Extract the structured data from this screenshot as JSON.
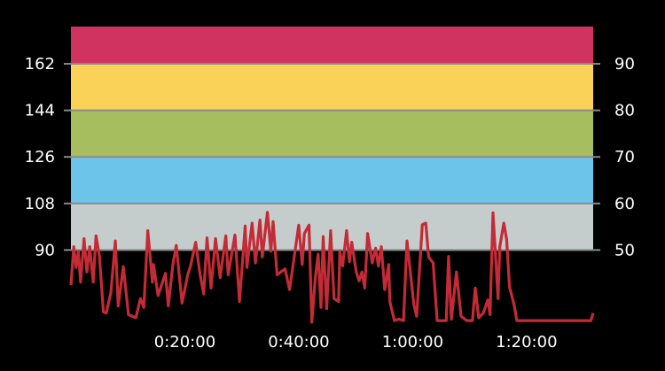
{
  "chart_data": {
    "type": "line",
    "title": "",
    "xlabel": "",
    "ylabel": "",
    "xlim": [
      0,
      91.7
    ],
    "ylim": [
      60,
      176.4
    ],
    "x_unit": "minutes",
    "x_ticks": [
      {
        "value": 20,
        "label": "0:20:00"
      },
      {
        "value": 40,
        "label": "0:40:00"
      },
      {
        "value": 60,
        "label": "1:00:00"
      },
      {
        "value": 80,
        "label": "1:20:00"
      }
    ],
    "y_ticks_left": [
      90,
      108,
      126,
      144,
      162
    ],
    "y_ticks_right": [
      {
        "value": 90,
        "label": "50"
      },
      {
        "value": 108,
        "label": "60"
      },
      {
        "value": 126,
        "label": "70"
      },
      {
        "value": 144,
        "label": "80"
      },
      {
        "value": 162,
        "label": "90"
      }
    ],
    "zones": [
      {
        "from": 90,
        "to": 108,
        "color": "#C5CDCC"
      },
      {
        "from": 108,
        "to": 126,
        "color": "#6CC4EB"
      },
      {
        "from": 126,
        "to": 144,
        "color": "#A7BE5E"
      },
      {
        "from": 144,
        "to": 162,
        "color": "#F9D257"
      },
      {
        "from": 162,
        "to": 176.4,
        "color": "#D03360"
      }
    ],
    "line_color": "#C32B36",
    "grid": false,
    "series": [
      {
        "x": [
          0,
          0.5,
          0.9,
          1.3,
          1.7,
          2.3,
          2.8,
          3.3,
          3.9,
          4.4,
          5.0,
          5.7,
          6.2,
          7.0,
          7.8,
          8.3,
          9.2,
          10.1,
          11.4,
          12.2,
          12.8,
          13.5,
          14.3,
          14.5,
          15.3,
          16.6,
          17.1,
          17.9,
          18.5,
          19.5,
          20.5,
          21.0,
          21.9,
          22.6,
          23.3,
          23.9,
          24.6,
          25.4,
          26.2,
          27.2,
          27.6,
          28.8,
          29.6,
          30.6,
          30.9,
          31.8,
          32.4,
          33.2,
          33.6,
          34.5,
          35.1,
          35.5,
          36.2,
          37.6,
          38.4,
          40.0,
          40.6,
          41.0,
          41.8,
          42.3,
          42.9,
          43.4,
          43.9,
          44.3,
          44.9,
          45.6,
          46.2,
          47.0,
          47.2,
          47.7,
          48.4,
          48.9,
          49.3,
          50.1,
          50.6,
          51.1,
          51.6,
          52.1,
          52.9,
          53.5,
          54.0,
          54.5,
          55.1,
          55.8,
          56.0,
          56.8,
          57.6,
          58.4,
          59.0,
          60.2,
          60.7,
          61.7,
          62.3,
          62.8,
          63.6,
          64.3,
          65.9,
          66.3,
          66.8,
          67.7,
          68.5,
          69.5,
          70.5,
          71.0,
          71.6,
          72.4,
          73.2,
          73.6,
          74.1,
          75.0,
          75.3,
          76.0,
          76.5,
          77.0,
          77.8,
          78.3,
          91.3,
          91.7
        ],
        "y": [
          76.4,
          91.3,
          83.2,
          89.5,
          77.6,
          94.4,
          81.5,
          91.3,
          77.6,
          95.5,
          87.8,
          66.1,
          65.6,
          73.5,
          93.5,
          68.4,
          83.6,
          65.0,
          63.8,
          71.2,
          67.8,
          97.5,
          77.6,
          84.4,
          72.4,
          81.0,
          68.4,
          84.4,
          91.8,
          69.5,
          80.4,
          83.8,
          93.0,
          81.5,
          73.0,
          94.7,
          75.3,
          94.4,
          79.3,
          95.5,
          80.4,
          95.8,
          70.1,
          99.3,
          83.2,
          100.4,
          85.0,
          101.6,
          87.3,
          104.6,
          89.5,
          101.0,
          80.4,
          82.7,
          74.7,
          99.6,
          84.4,
          96.4,
          99.6,
          62.1,
          79.3,
          88.4,
          67.8,
          95.2,
          67.3,
          97.5,
          71.2,
          70.1,
          89.5,
          83.8,
          97.5,
          85.5,
          93.0,
          81.5,
          78.1,
          81.5,
          75.3,
          96.4,
          85.0,
          90.7,
          83.8,
          91.3,
          74.7,
          84.4,
          70.1,
          62.7,
          63.3,
          62.7,
          93.5,
          69.0,
          64.4,
          99.8,
          100.4,
          87.3,
          85.0,
          62.7,
          62.7,
          87.5,
          63.3,
          81.5,
          64.4,
          62.7,
          62.7,
          75.3,
          63.8,
          65.6,
          70.7,
          65.0,
          104.4,
          71.2,
          91.3,
          100.4,
          94.1,
          75.8,
          69.0,
          62.7,
          62.7,
          65.6
        ]
      }
    ]
  }
}
